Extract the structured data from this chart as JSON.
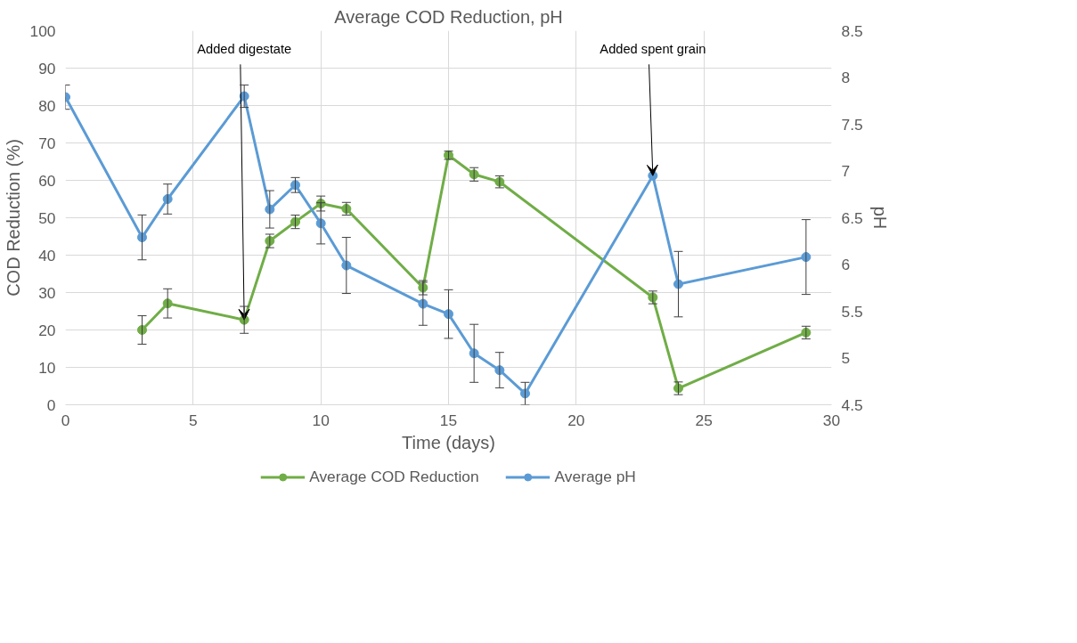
{
  "chart_data": {
    "type": "line",
    "title": "Average COD Reduction, pH",
    "xlabel": "Time (days)",
    "ylabel": "COD Reduction (%)",
    "y2label": "pH",
    "xlim": [
      0,
      30
    ],
    "xticks": [
      0,
      5,
      10,
      15,
      20,
      25,
      30
    ],
    "ylim": [
      0,
      100
    ],
    "yticks": [
      0,
      10,
      20,
      30,
      40,
      50,
      60,
      70,
      80,
      90,
      100
    ],
    "y2lim": [
      4.5,
      8.5
    ],
    "y2ticks": [
      4.5,
      5,
      5.5,
      6,
      6.5,
      7,
      7.5,
      8,
      8.5
    ],
    "grid": true,
    "legend": "bottom",
    "marker": "circle",
    "line_style": "solid",
    "series": [
      {
        "name": "Average COD Reduction",
        "color": "#70ad47",
        "x": [
          3,
          4,
          7,
          8,
          9,
          10,
          11,
          14,
          15,
          16,
          17,
          23,
          24,
          29
        ],
        "values": [
          20.0,
          27.1,
          22.7,
          43.8,
          48.9,
          53.8,
          52.4,
          31.3,
          66.7,
          61.6,
          59.6,
          28.7,
          4.4,
          19.3
        ],
        "errors": [
          3.8,
          3.9,
          3.6,
          1.8,
          1.8,
          2.0,
          1.7,
          1.9,
          1.1,
          1.8,
          1.6,
          1.7,
          1.7,
          1.7
        ]
      },
      {
        "name": "Average pH",
        "color": "#5b9bd5",
        "axis": "y2",
        "x": [
          0,
          3,
          4,
          7,
          8,
          9,
          10,
          11,
          14,
          15,
          16,
          17,
          18,
          23,
          24,
          29
        ],
        "values": [
          7.79,
          6.29,
          6.7,
          7.8,
          6.59,
          6.85,
          6.44,
          5.99,
          5.58,
          5.47,
          5.05,
          4.87,
          4.62,
          6.95,
          5.79,
          6.08
        ],
        "errors": [
          0.13,
          0.24,
          0.16,
          0.12,
          0.2,
          0.08,
          0.22,
          0.3,
          0.23,
          0.26,
          0.31,
          0.19,
          0.12,
          null,
          0.35,
          0.4
        ]
      }
    ],
    "annotations": [
      {
        "text": "Added digestate",
        "x": 7,
        "y": 22.7
      },
      {
        "text": "Added spent grain",
        "x": 23,
        "y": 61.25
      }
    ]
  }
}
